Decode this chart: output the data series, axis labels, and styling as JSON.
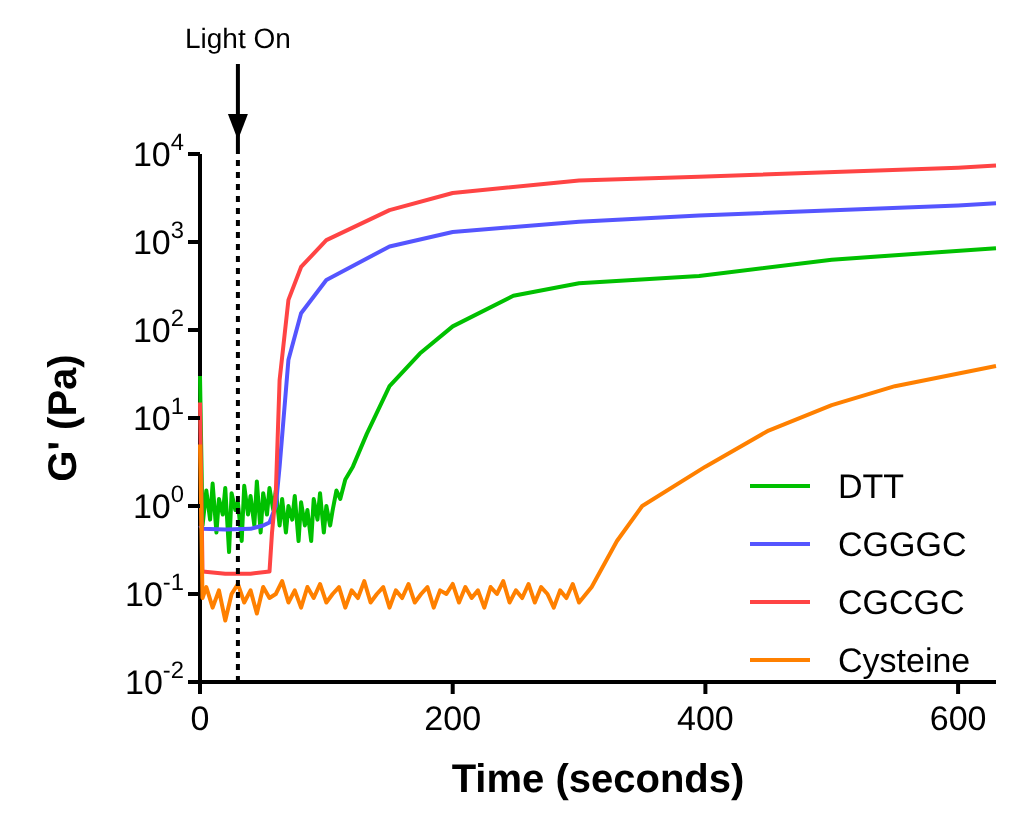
{
  "chart_data": {
    "type": "line",
    "xlabel": "Time (seconds)",
    "ylabel": "G' (Pa)",
    "log": "y",
    "xlim": [
      0,
      630
    ],
    "ylim": [
      0.01,
      10000
    ],
    "xticks": [
      0,
      200,
      400,
      600
    ],
    "yticks": [
      {
        "value": 0.01,
        "label": "10$^{-2}$"
      },
      {
        "value": 0.1,
        "label": "10$^{-1}$"
      },
      {
        "value": 1,
        "label": "10$^{0}$"
      },
      {
        "value": 10,
        "label": "10$^{1}$"
      },
      {
        "value": 100,
        "label": "10$^{2}$"
      },
      {
        "value": 1000,
        "label": "10$^{3}$"
      },
      {
        "value": 10000,
        "label": "10$^{4}$"
      }
    ],
    "legend": "bottom right",
    "grid": false,
    "line_style": "solid",
    "ref_lines": [
      {
        "axis": "x",
        "value": 30,
        "label": "Light On",
        "line_style": "dotted",
        "color": "#000000"
      }
    ],
    "series": [
      {
        "name": "DTT",
        "color": "#00c000",
        "x": [
          0,
          2,
          5,
          8,
          10,
          13,
          15,
          18,
          20,
          23,
          25,
          28,
          30,
          33,
          35,
          38,
          40,
          43,
          45,
          48,
          50,
          53,
          55,
          58,
          60,
          63,
          65,
          68,
          70,
          73,
          75,
          78,
          80,
          83,
          85,
          88,
          90,
          93,
          95,
          98,
          100,
          103,
          105,
          108,
          111,
          115,
          121,
          132,
          150,
          174,
          200,
          248,
          300,
          395,
          500,
          630
        ],
        "values": [
          30,
          0.6,
          1.5,
          0.7,
          1.8,
          0.5,
          1.2,
          0.8,
          1.6,
          0.3,
          1.4,
          0.9,
          1.1,
          0.4,
          1.7,
          0.8,
          1.3,
          0.6,
          1.9,
          0.5,
          1.4,
          0.8,
          1.6,
          0.9,
          1.5,
          0.6,
          1.2,
          0.5,
          1,
          0.7,
          1.3,
          0.4,
          1.1,
          0.6,
          0.9,
          0.4,
          1.2,
          0.7,
          1.4,
          0.5,
          1,
          0.6,
          0.9,
          1.5,
          1.2,
          2,
          2.8,
          6.6,
          23,
          54,
          110,
          245,
          340,
          410,
          630,
          850
        ]
      },
      {
        "name": "CGGGC",
        "color": "#5555ff",
        "x": [
          0,
          2,
          20,
          40,
          50,
          55,
          60,
          63,
          70,
          80,
          100,
          150,
          200,
          300,
          395,
          600,
          630
        ],
        "values": [
          0.6,
          0.55,
          0.54,
          0.55,
          0.6,
          0.65,
          1,
          2.8,
          46,
          155,
          370,
          890,
          1300,
          1700,
          2000,
          2600,
          2750
        ]
      },
      {
        "name": "CGCGC",
        "color": "#ff4444",
        "x": [
          0,
          2,
          20,
          40,
          55,
          57,
          60,
          63,
          70,
          80,
          100,
          150,
          200,
          300,
          395,
          600,
          630
        ],
        "values": [
          15,
          0.18,
          0.17,
          0.17,
          0.18,
          0.5,
          1.4,
          27,
          220,
          520,
          1050,
          2300,
          3600,
          5000,
          5500,
          7000,
          7400
        ]
      },
      {
        "name": "Cysteine",
        "color": "#ff8000",
        "x": [
          0,
          2,
          5,
          10,
          15,
          20,
          25,
          30,
          35,
          40,
          45,
          50,
          55,
          60,
          65,
          70,
          75,
          80,
          85,
          90,
          95,
          100,
          105,
          110,
          115,
          120,
          125,
          130,
          135,
          140,
          145,
          150,
          155,
          160,
          165,
          170,
          175,
          180,
          185,
          190,
          195,
          200,
          205,
          210,
          215,
          220,
          225,
          230,
          235,
          240,
          245,
          250,
          255,
          260,
          265,
          270,
          275,
          280,
          285,
          290,
          295,
          300,
          310,
          330,
          350,
          400,
          450,
          500,
          550,
          630
        ],
        "values": [
          5,
          0.09,
          0.12,
          0.07,
          0.11,
          0.05,
          0.1,
          0.13,
          0.08,
          0.11,
          0.06,
          0.12,
          0.09,
          0.1,
          0.14,
          0.08,
          0.11,
          0.07,
          0.12,
          0.09,
          0.13,
          0.08,
          0.1,
          0.12,
          0.07,
          0.11,
          0.09,
          0.14,
          0.08,
          0.1,
          0.12,
          0.07,
          0.11,
          0.09,
          0.13,
          0.08,
          0.1,
          0.12,
          0.07,
          0.11,
          0.1,
          0.13,
          0.08,
          0.12,
          0.09,
          0.11,
          0.07,
          0.12,
          0.1,
          0.14,
          0.08,
          0.11,
          0.09,
          0.13,
          0.08,
          0.12,
          0.1,
          0.07,
          0.11,
          0.09,
          0.13,
          0.08,
          0.12,
          0.4,
          1,
          2.8,
          7.2,
          14,
          23,
          39
        ]
      }
    ]
  }
}
